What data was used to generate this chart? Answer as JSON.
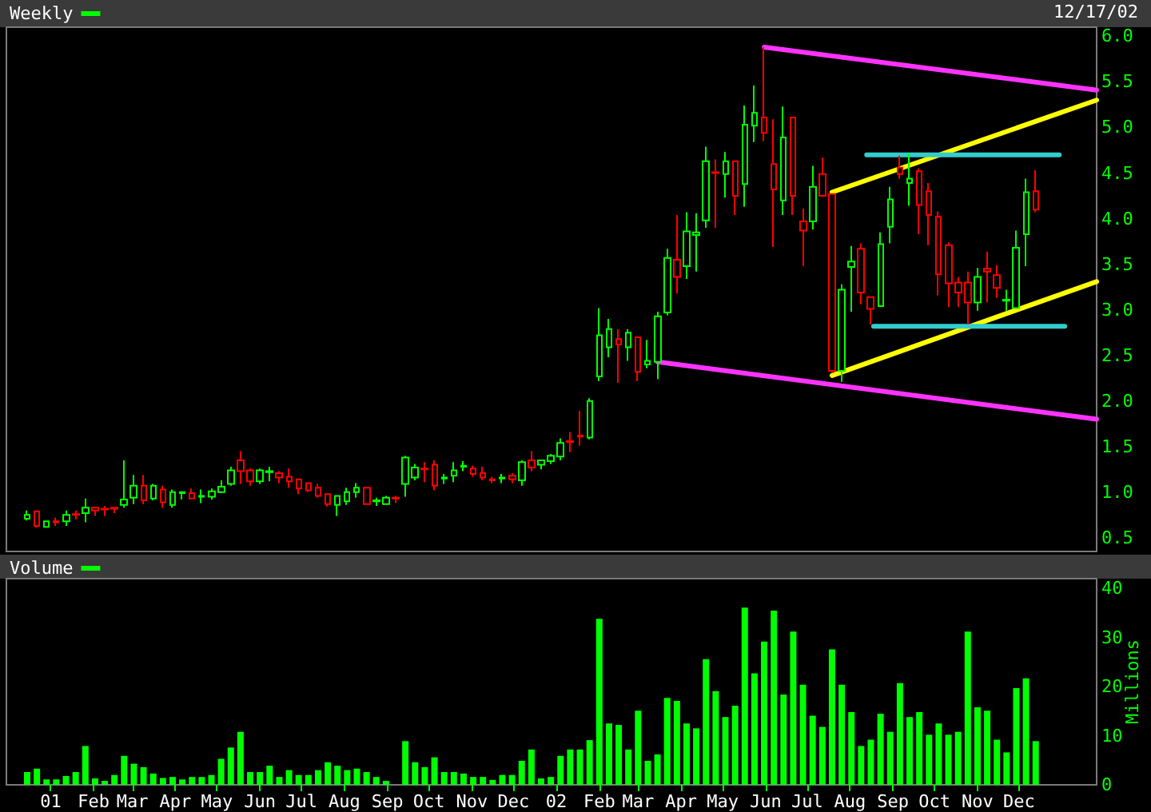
{
  "chart_data": [
    {
      "type": "candlestick",
      "legend": "top left",
      "tick_labels": "y",
      "marker": "none",
      "line_style": "solid",
      "annotations": [
        "12/17/02"
      ],
      "x": [
        "2000-12-15",
        "2000-12-22",
        "2000-12-29",
        "2001-01-05",
        "2001-01-12",
        "2001-01-19",
        "2001-01-26",
        "2001-02-02",
        "2001-02-09",
        "2001-02-16",
        "2001-02-23",
        "2001-03-02",
        "2001-03-09",
        "2001-03-16",
        "2001-03-23",
        "2001-03-30",
        "2001-04-06",
        "2001-04-13",
        "2001-04-20",
        "2001-04-27",
        "2001-05-04",
        "2001-05-11",
        "2001-05-18",
        "2001-05-25",
        "2001-06-01",
        "2001-06-08",
        "2001-06-15",
        "2001-06-22",
        "2001-06-29",
        "2001-07-06",
        "2001-07-13",
        "2001-07-20",
        "2001-07-27",
        "2001-08-03",
        "2001-08-10",
        "2001-08-17",
        "2001-08-24",
        "2001-08-31",
        "2001-09-07",
        "2001-09-14",
        "2001-09-21",
        "2001-09-28",
        "2001-10-05",
        "2001-10-12",
        "2001-10-19",
        "2001-10-26",
        "2001-11-02",
        "2001-11-09",
        "2001-11-16",
        "2001-11-23",
        "2001-11-30",
        "2001-12-07",
        "2001-12-14",
        "2001-12-21",
        "2001-12-28",
        "2002-01-04",
        "2002-01-11",
        "2002-01-18",
        "2002-01-25",
        "2002-02-01",
        "2002-02-08",
        "2002-02-15",
        "2002-02-22",
        "2002-03-01",
        "2002-03-08",
        "2002-03-15",
        "2002-03-22",
        "2002-03-29",
        "2002-04-05",
        "2002-04-12",
        "2002-04-19",
        "2002-04-26",
        "2002-05-03",
        "2002-05-10",
        "2002-05-17",
        "2002-05-24",
        "2002-05-31",
        "2002-06-07",
        "2002-06-14",
        "2002-06-21",
        "2002-06-28",
        "2002-07-05",
        "2002-07-12",
        "2002-07-19",
        "2002-07-26",
        "2002-08-02",
        "2002-08-09",
        "2002-08-16",
        "2002-08-23",
        "2002-08-30",
        "2002-09-06",
        "2002-09-13",
        "2002-09-20",
        "2002-09-27",
        "2002-10-04",
        "2002-10-11",
        "2002-10-18",
        "2002-10-25",
        "2002-11-01",
        "2002-11-08",
        "2002-11-15",
        "2002-11-22",
        "2002-11-29",
        "2002-12-06",
        "2002-12-13"
      ],
      "xlim": [
        "2000-11-30",
        "2003-01-26"
      ],
      "ylim": [
        0.35,
        6.1
      ],
      "yticks": [
        0.5,
        {
          "value": 1,
          "label": "1.0"
        },
        1.5,
        {
          "value": 2,
          "label": "2.0"
        },
        2.5,
        {
          "value": 3,
          "label": "3.0"
        },
        3.5,
        {
          "value": 4,
          "label": "4.0"
        },
        4.5,
        {
          "value": 5,
          "label": "5.0"
        },
        5.5,
        {
          "value": 6,
          "label": "6.0"
        }
      ],
      "series": [
        {
          "name": "Weekly",
          "type": "candlestick",
          "color": "#00ff00",
          "ohlc": [
            [
              0.71,
              0.8,
              0.69,
              0.75
            ],
            [
              0.79,
              0.79,
              0.61,
              0.63
            ],
            [
              0.62,
              0.68,
              0.62,
              0.68
            ],
            [
              0.68,
              0.72,
              0.63,
              0.67
            ],
            [
              0.68,
              0.8,
              0.63,
              0.75
            ],
            [
              0.76,
              0.8,
              0.7,
              0.75
            ],
            [
              0.77,
              0.93,
              0.67,
              0.83
            ],
            [
              0.83,
              0.83,
              0.74,
              0.8
            ],
            [
              0.82,
              0.85,
              0.74,
              0.81
            ],
            [
              0.83,
              0.83,
              0.77,
              0.82
            ],
            [
              0.86,
              1.35,
              0.83,
              0.92
            ],
            [
              0.94,
              1.19,
              0.87,
              1.07
            ],
            [
              1.07,
              1.19,
              0.87,
              0.91
            ],
            [
              0.93,
              1.09,
              0.91,
              1.07
            ],
            [
              1.03,
              1.07,
              0.83,
              0.89
            ],
            [
              0.86,
              1.03,
              0.83,
              1.0
            ],
            [
              0.99,
              1.0,
              0.92,
              1.0
            ],
            [
              0.99,
              1.04,
              0.93,
              0.93
            ],
            [
              0.95,
              1.03,
              0.88,
              0.96
            ],
            [
              0.95,
              1.04,
              0.92,
              1.01
            ],
            [
              1.0,
              1.13,
              0.99,
              1.06
            ],
            [
              1.09,
              1.28,
              1.07,
              1.24
            ],
            [
              1.35,
              1.45,
              1.09,
              1.23
            ],
            [
              1.24,
              1.26,
              1.07,
              1.12
            ],
            [
              1.12,
              1.26,
              1.09,
              1.24
            ],
            [
              1.22,
              1.28,
              1.12,
              1.23
            ],
            [
              1.21,
              1.23,
              1.1,
              1.16
            ],
            [
              1.17,
              1.26,
              1.05,
              1.12
            ],
            [
              1.14,
              1.14,
              0.98,
              1.04
            ],
            [
              1.1,
              1.1,
              1.0,
              1.02
            ],
            [
              1.05,
              1.09,
              0.94,
              0.96
            ],
            [
              0.98,
              0.98,
              0.84,
              0.87
            ],
            [
              0.86,
              0.96,
              0.74,
              0.96
            ],
            [
              0.9,
              1.05,
              0.86,
              1.0
            ],
            [
              1.0,
              1.1,
              0.94,
              1.05
            ],
            [
              1.05,
              1.05,
              0.87,
              0.87
            ],
            [
              0.9,
              0.94,
              0.85,
              0.91
            ],
            [
              0.87,
              0.96,
              0.87,
              0.94
            ],
            [
              0.94,
              0.96,
              0.88,
              0.93
            ],
            [
              1.09,
              1.4,
              0.95,
              1.38
            ],
            [
              1.16,
              1.31,
              1.13,
              1.27
            ],
            [
              1.26,
              1.33,
              1.11,
              1.25
            ],
            [
              1.3,
              1.35,
              1.02,
              1.07
            ],
            [
              1.15,
              1.2,
              1.09,
              1.16
            ],
            [
              1.18,
              1.33,
              1.11,
              1.24
            ],
            [
              1.28,
              1.34,
              1.23,
              1.29
            ],
            [
              1.26,
              1.29,
              1.17,
              1.2
            ],
            [
              1.21,
              1.28,
              1.13,
              1.16
            ],
            [
              1.14,
              1.17,
              1.1,
              1.13
            ],
            [
              1.15,
              1.2,
              1.1,
              1.16
            ],
            [
              1.18,
              1.21,
              1.1,
              1.14
            ],
            [
              1.13,
              1.35,
              1.07,
              1.33
            ],
            [
              1.35,
              1.45,
              1.23,
              1.27
            ],
            [
              1.3,
              1.35,
              1.25,
              1.35
            ],
            [
              1.34,
              1.42,
              1.31,
              1.4
            ],
            [
              1.39,
              1.59,
              1.35,
              1.54
            ],
            [
              1.56,
              1.66,
              1.44,
              1.55
            ],
            [
              1.62,
              1.89,
              1.51,
              1.61
            ],
            [
              1.6,
              2.03,
              1.58,
              2.0
            ],
            [
              2.27,
              3.02,
              2.22,
              2.72
            ],
            [
              2.59,
              2.9,
              2.48,
              2.79
            ],
            [
              2.68,
              2.79,
              2.2,
              2.62
            ],
            [
              2.59,
              2.79,
              2.44,
              2.75
            ],
            [
              2.7,
              2.7,
              2.22,
              2.32
            ],
            [
              2.4,
              2.67,
              2.36,
              2.44
            ],
            [
              2.43,
              2.98,
              2.24,
              2.93
            ],
            [
              2.97,
              3.67,
              2.94,
              3.57
            ],
            [
              3.55,
              4.04,
              3.18,
              3.36
            ],
            [
              3.48,
              4.07,
              3.34,
              3.86
            ],
            [
              3.82,
              4.06,
              3.42,
              3.85
            ],
            [
              3.98,
              4.79,
              3.9,
              4.63
            ],
            [
              4.51,
              4.65,
              3.9,
              4.5
            ],
            [
              4.49,
              4.73,
              4.23,
              4.63
            ],
            [
              4.63,
              4.63,
              4.04,
              4.25
            ],
            [
              4.38,
              5.24,
              4.13,
              5.03
            ],
            [
              5.02,
              5.46,
              4.84,
              5.16
            ],
            [
              5.11,
              5.88,
              4.85,
              4.94
            ],
            [
              4.6,
              5.09,
              3.69,
              4.32
            ],
            [
              4.2,
              5.23,
              4.04,
              4.89
            ],
            [
              5.11,
              5.11,
              4.04,
              4.25
            ],
            [
              3.97,
              4.11,
              3.48,
              3.87
            ],
            [
              3.97,
              4.58,
              3.88,
              4.35
            ],
            [
              4.49,
              4.67,
              4.25,
              4.25
            ],
            [
              4.27,
              4.28,
              2.31,
              2.33
            ],
            [
              2.33,
              3.28,
              2.21,
              3.22
            ],
            [
              3.47,
              3.7,
              2.98,
              3.53
            ],
            [
              3.67,
              3.73,
              3.06,
              3.19
            ],
            [
              3.14,
              3.14,
              2.84,
              3.01
            ],
            [
              3.04,
              3.85,
              3.03,
              3.72
            ],
            [
              3.91,
              4.35,
              3.73,
              4.21
            ],
            [
              4.56,
              4.69,
              4.44,
              4.49
            ],
            [
              4.39,
              4.71,
              4.14,
              4.44
            ],
            [
              4.52,
              4.55,
              3.83,
              4.15
            ],
            [
              4.3,
              4.39,
              3.71,
              4.04
            ],
            [
              4.02,
              4.08,
              3.16,
              3.39
            ],
            [
              3.71,
              3.74,
              3.03,
              3.29
            ],
            [
              3.3,
              3.36,
              3.03,
              3.19
            ],
            [
              3.3,
              3.42,
              2.84,
              3.08
            ],
            [
              3.08,
              3.46,
              2.99,
              3.36
            ],
            [
              3.45,
              3.64,
              3.08,
              3.42
            ],
            [
              3.38,
              3.49,
              3.13,
              3.24
            ],
            [
              3.1,
              3.22,
              2.99,
              3.11
            ],
            [
              3.02,
              3.87,
              3.01,
              3.68
            ],
            [
              3.83,
              4.44,
              3.48,
              4.29
            ],
            [
              4.3,
              4.53,
              4.07,
              4.1
            ]
          ],
          "colors": [
            "#00ff00",
            "#ff0000",
            "#00ff00",
            "#ff0000",
            "#00ff00",
            "#ff0000",
            "#00ff00",
            "#ff0000",
            "#ff0000",
            "#ff0000",
            "#00ff00",
            "#00ff00",
            "#ff0000",
            "#00ff00",
            "#ff0000",
            "#00ff00",
            "#00ff00",
            "#ff0000",
            "#00ff00",
            "#00ff00",
            "#00ff00",
            "#00ff00",
            "#ff0000",
            "#ff0000",
            "#00ff00",
            "#00ff00",
            "#ff0000",
            "#ff0000",
            "#ff0000",
            "#ff0000",
            "#ff0000",
            "#ff0000",
            "#00ff00",
            "#00ff00",
            "#00ff00",
            "#ff0000",
            "#00ff00",
            "#00ff00",
            "#ff0000",
            "#00ff00",
            "#00ff00",
            "#ff0000",
            "#ff0000",
            "#00ff00",
            "#00ff00",
            "#00ff00",
            "#ff0000",
            "#ff0000",
            "#ff0000",
            "#00ff00",
            "#ff0000",
            "#00ff00",
            "#ff0000",
            "#00ff00",
            "#00ff00",
            "#00ff00",
            "#ff0000",
            "#ff0000",
            "#00ff00",
            "#00ff00",
            "#00ff00",
            "#ff0000",
            "#00ff00",
            "#ff0000",
            "#00ff00",
            "#00ff00",
            "#00ff00",
            "#ff0000",
            "#00ff00",
            "#00ff00",
            "#00ff00",
            "#ff0000",
            "#00ff00",
            "#ff0000",
            "#00ff00",
            "#00ff00",
            "#ff0000",
            "#ff0000",
            "#00ff00",
            "#ff0000",
            "#ff0000",
            "#00ff00",
            "#ff0000",
            "#ff0000",
            "#00ff00",
            "#00ff00",
            "#ff0000",
            "#ff0000",
            "#00ff00",
            "#00ff00",
            "#ff0000",
            "#00ff00",
            "#ff0000",
            "#ff0000",
            "#ff0000",
            "#ff0000",
            "#ff0000",
            "#ff0000",
            "#00ff00",
            "#ff0000",
            "#ff0000",
            "#00ff00",
            "#00ff00",
            "#00ff00",
            "#ff0000"
          ]
        },
        {
          "type": "line",
          "x": [
            "2002-05-31",
            "2003-01-26"
          ],
          "values": [
            5.88,
            5.41
          ],
          "color": "#ff33ff"
        },
        {
          "type": "line",
          "x": [
            "2002-03-15",
            "2003-01-26"
          ],
          "values": [
            2.43,
            1.8
          ],
          "color": "#ff33ff"
        },
        {
          "type": "line",
          "x": [
            "2002-07-19",
            "2003-01-26"
          ],
          "values": [
            4.29,
            5.3
          ],
          "color": "#ffff00"
        },
        {
          "type": "line",
          "x": [
            "2002-07-19",
            "2003-01-26"
          ],
          "values": [
            2.28,
            3.31
          ],
          "color": "#ffff00"
        },
        {
          "type": "line",
          "x": [
            "2002-08-13",
            "2002-12-30"
          ],
          "values": [
            4.7,
            4.7
          ],
          "color": "#33cccc"
        },
        {
          "type": "line",
          "x": [
            "2002-08-18",
            "2003-01-03"
          ],
          "values": [
            2.82,
            2.82
          ],
          "color": "#33cccc"
        }
      ]
    },
    {
      "type": "bar",
      "legend": "top left",
      "ylabel": "Millions",
      "x": [
        "2000-12-15",
        "2000-12-22",
        "2000-12-29",
        "2001-01-05",
        "2001-01-12",
        "2001-01-19",
        "2001-01-26",
        "2001-02-02",
        "2001-02-09",
        "2001-02-16",
        "2001-02-23",
        "2001-03-02",
        "2001-03-09",
        "2001-03-16",
        "2001-03-23",
        "2001-03-30",
        "2001-04-06",
        "2001-04-13",
        "2001-04-20",
        "2001-04-27",
        "2001-05-04",
        "2001-05-11",
        "2001-05-18",
        "2001-05-25",
        "2001-06-01",
        "2001-06-08",
        "2001-06-15",
        "2001-06-22",
        "2001-06-29",
        "2001-07-06",
        "2001-07-13",
        "2001-07-20",
        "2001-07-27",
        "2001-08-03",
        "2001-08-10",
        "2001-08-17",
        "2001-08-24",
        "2001-08-31",
        "2001-09-07",
        "2001-09-14",
        "2001-09-21",
        "2001-09-28",
        "2001-10-05",
        "2001-10-12",
        "2001-10-19",
        "2001-10-26",
        "2001-11-02",
        "2001-11-09",
        "2001-11-16",
        "2001-11-23",
        "2001-11-30",
        "2001-12-07",
        "2001-12-14",
        "2001-12-21",
        "2001-12-28",
        "2002-01-04",
        "2002-01-11",
        "2002-01-18",
        "2002-01-25",
        "2002-02-01",
        "2002-02-08",
        "2002-02-15",
        "2002-02-22",
        "2002-03-01",
        "2002-03-08",
        "2002-03-15",
        "2002-03-22",
        "2002-03-29",
        "2002-04-05",
        "2002-04-12",
        "2002-04-19",
        "2002-04-26",
        "2002-05-03",
        "2002-05-10",
        "2002-05-17",
        "2002-05-24",
        "2002-05-31",
        "2002-06-07",
        "2002-06-14",
        "2002-06-21",
        "2002-06-28",
        "2002-07-05",
        "2002-07-12",
        "2002-07-19",
        "2002-07-26",
        "2002-08-02",
        "2002-08-09",
        "2002-08-16",
        "2002-08-23",
        "2002-08-30",
        "2002-09-06",
        "2002-09-13",
        "2002-09-20",
        "2002-09-27",
        "2002-10-04",
        "2002-10-11",
        "2002-10-18",
        "2002-10-25",
        "2002-11-01",
        "2002-11-08",
        "2002-11-15",
        "2002-11-22",
        "2002-11-29",
        "2002-12-06",
        "2002-12-13"
      ],
      "xlim": [
        "2000-11-30",
        "2003-01-26"
      ],
      "xticks": [
        {
          "value": "2001-01-01",
          "label": "01"
        },
        {
          "value": "2001-02-01",
          "label": "Feb"
        },
        {
          "value": "2001-03-01",
          "label": "Mar"
        },
        {
          "value": "2001-04-01",
          "label": "Apr"
        },
        {
          "value": "2001-05-01",
          "label": "May"
        },
        {
          "value": "2001-06-01",
          "label": "Jun"
        },
        {
          "value": "2001-07-01",
          "label": "Jul"
        },
        {
          "value": "2001-08-01",
          "label": "Aug"
        },
        {
          "value": "2001-09-01",
          "label": "Sep"
        },
        {
          "value": "2001-10-01",
          "label": "Oct"
        },
        {
          "value": "2001-11-01",
          "label": "Nov"
        },
        {
          "value": "2001-12-01",
          "label": "Dec"
        },
        {
          "value": "2002-01-01",
          "label": "02"
        },
        {
          "value": "2002-02-01",
          "label": "Feb"
        },
        {
          "value": "2002-03-01",
          "label": "Mar"
        },
        {
          "value": "2002-04-01",
          "label": "Apr"
        },
        {
          "value": "2002-05-01",
          "label": "May"
        },
        {
          "value": "2002-06-01",
          "label": "Jun"
        },
        {
          "value": "2002-07-01",
          "label": "Jul"
        },
        {
          "value": "2002-08-01",
          "label": "Aug"
        },
        {
          "value": "2002-09-01",
          "label": "Sep"
        },
        {
          "value": "2002-10-01",
          "label": "Oct"
        },
        {
          "value": "2002-11-01",
          "label": "Nov"
        },
        {
          "value": "2002-12-01",
          "label": "Dec"
        }
      ],
      "ylim": [
        0,
        42
      ],
      "yticks": [
        0,
        10,
        20,
        30,
        40
      ],
      "series": [
        {
          "name": "Volume",
          "color": "#00ff00",
          "values": [
            2.6,
            3.3,
            1.1,
            1.1,
            1.8,
            2.6,
            7.9,
            1.3,
            0.8,
            2.0,
            5.9,
            4.3,
            3.6,
            2.3,
            1.4,
            1.6,
            1.1,
            1.6,
            1.6,
            2.0,
            5.3,
            7.6,
            10.8,
            2.6,
            2.6,
            3.9,
            1.6,
            3.0,
            2.0,
            2.0,
            3.0,
            4.6,
            3.9,
            3.0,
            3.3,
            2.6,
            1.6,
            0.8,
            null,
            8.9,
            4.6,
            3.6,
            5.6,
            2.6,
            2.6,
            2.3,
            1.6,
            1.6,
            1.0,
            2.0,
            2.0,
            4.9,
            7.2,
            1.3,
            1.6,
            5.9,
            7.2,
            7.2,
            9.1,
            33.8,
            12.5,
            12.2,
            7.2,
            15.1,
            4.9,
            6.2,
            17.7,
            17.1,
            12.5,
            11.5,
            25.6,
            19.1,
            13.8,
            16.1,
            36.1,
            22.7,
            29.2,
            35.5,
            18.4,
            31.2,
            20.4,
            14.1,
            11.8,
            27.6,
            20.4,
            14.8,
            7.9,
            9.2,
            14.5,
            10.8,
            20.7,
            13.8,
            14.8,
            10.2,
            12.5,
            10.2,
            10.8,
            31.2,
            15.8,
            15.1,
            9.2,
            6.6,
            19.7,
            21.7,
            8.9
          ]
        }
      ]
    }
  ]
}
